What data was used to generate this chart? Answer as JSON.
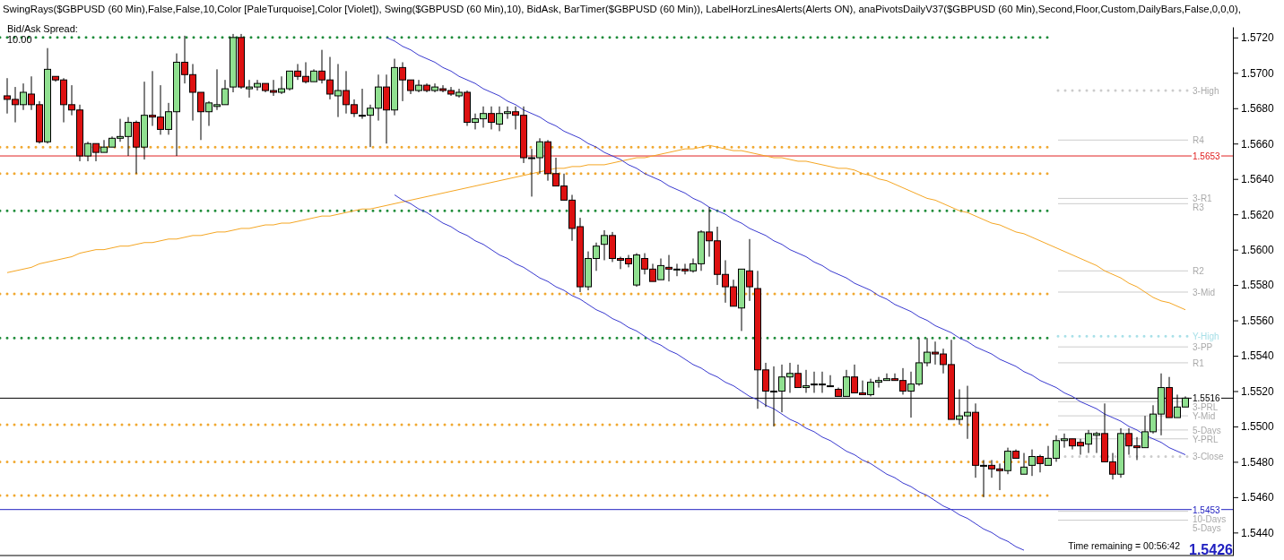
{
  "chart_data": {
    "type": "candlestick",
    "title": "SwingRays($GBPUSD (60 Min),False,False,10,Color [PaleTurquoise],Color [Violet]), Swing($GBPUSD (60 Min),10), BidAsk, BarTimer($GBPUSD (60 Min)), LabelHorzLinesAlerts(Alerts ON), anaPivotsDailyV37($GBPUSD (60 Min),Second,Floor,Custom,DailyBars,False,0,0,0),",
    "categories": [
      null,
      null,
      null,
      null,
      null,
      null,
      null,
      null,
      null,
      null,
      null,
      null,
      null,
      null,
      null,
      null,
      null,
      null,
      null,
      null,
      null,
      null,
      null,
      null,
      null,
      null,
      null,
      null,
      null,
      null,
      null,
      null,
      null,
      null,
      null,
      null,
      null,
      null,
      null,
      null,
      null,
      null,
      null,
      null,
      null,
      null,
      null,
      null,
      null,
      null,
      null,
      null,
      null,
      null,
      null,
      null,
      null,
      null,
      null,
      null,
      null,
      null,
      null,
      null,
      null,
      null,
      null,
      null,
      null,
      null,
      null,
      null,
      null,
      null,
      null,
      null,
      null,
      null,
      null,
      null,
      null,
      null,
      null,
      null,
      null,
      null,
      null,
      null,
      null,
      null,
      null,
      null,
      null,
      null,
      null,
      null,
      null,
      null,
      null,
      null,
      null,
      null,
      null,
      null,
      null,
      null,
      null,
      null,
      null,
      null,
      null,
      null,
      null,
      null,
      null,
      null,
      null,
      null,
      null,
      null,
      null,
      null,
      null,
      null,
      null,
      null,
      null,
      null,
      null,
      null,
      null,
      null,
      null,
      null,
      null,
      null,
      null,
      null,
      null,
      null,
      null,
      null,
      null,
      null,
      null,
      null,
      null
    ],
    "ohlc": [
      [
        1.5687,
        1.5697,
        1.5677,
        1.5685
      ],
      [
        1.5685,
        1.5692,
        1.5672,
        1.5682
      ],
      [
        1.5682,
        1.5694,
        1.5679,
        1.5689
      ],
      [
        1.5688,
        1.5698,
        1.5679,
        1.5682
      ],
      [
        1.5682,
        1.5684,
        1.566,
        1.5661
      ],
      [
        1.5661,
        1.5714,
        1.566,
        1.5702
      ],
      [
        1.5698,
        1.5698,
        1.5695,
        1.5696
      ],
      [
        1.5696,
        1.5697,
        1.5672,
        1.5682
      ],
      [
        1.5682,
        1.5693,
        1.5676,
        1.5679
      ],
      [
        1.5679,
        1.5682,
        1.565,
        1.5653
      ],
      [
        1.5653,
        1.5661,
        1.565,
        1.566
      ],
      [
        1.566,
        1.566,
        1.565,
        1.5655
      ],
      [
        1.5655,
        1.5662,
        1.5655,
        1.5658
      ],
      [
        1.5658,
        1.5664,
        1.5658,
        1.5663
      ],
      [
        1.5663,
        1.5674,
        1.5661,
        1.5664
      ],
      [
        1.5664,
        1.5675,
        1.5653,
        1.5672
      ],
      [
        1.5672,
        1.5673,
        1.5643,
        1.5658
      ],
      [
        1.5658,
        1.5695,
        1.5651,
        1.5676
      ],
      [
        1.5676,
        1.5701,
        1.567,
        1.5675
      ],
      [
        1.5675,
        1.5693,
        1.5665,
        1.5668
      ],
      [
        1.5668,
        1.5683,
        1.5665,
        1.5678
      ],
      [
        1.5678,
        1.5711,
        1.5653,
        1.5706
      ],
      [
        1.5706,
        1.5721,
        1.5694,
        1.5699
      ],
      [
        1.5699,
        1.5705,
        1.5673,
        1.5689
      ],
      [
        1.5689,
        1.5689,
        1.5662,
        1.5678
      ],
      [
        1.5678,
        1.5684,
        1.567,
        1.5683
      ],
      [
        1.5681,
        1.5702,
        1.5679,
        1.5682
      ],
      [
        1.5682,
        1.5696,
        1.5682,
        1.5691
      ],
      [
        1.5692,
        1.5722,
        1.5689,
        1.572
      ],
      [
        1.572,
        1.5722,
        1.5691,
        1.5692
      ],
      [
        1.5691,
        1.5696,
        1.5686,
        1.5692
      ],
      [
        1.5692,
        1.5696,
        1.569,
        1.5694
      ],
      [
        1.5694,
        1.5694,
        1.5689,
        1.569
      ],
      [
        1.569,
        1.5696,
        1.5687,
        1.5689
      ],
      [
        1.5689,
        1.5698,
        1.5688,
        1.5691
      ],
      [
        1.5691,
        1.5701,
        1.569,
        1.5701
      ],
      [
        1.5701,
        1.5705,
        1.5696,
        1.5698
      ],
      [
        1.5698,
        1.5706,
        1.5694,
        1.5695
      ],
      [
        1.5695,
        1.5702,
        1.5695,
        1.5701
      ],
      [
        1.5701,
        1.5713,
        1.5694,
        1.5696
      ],
      [
        1.5696,
        1.5709,
        1.5685,
        1.5688
      ],
      [
        1.5687,
        1.5705,
        1.5675,
        1.569
      ],
      [
        1.569,
        1.5701,
        1.5677,
        1.5682
      ],
      [
        1.5682,
        1.5685,
        1.5675,
        1.5677
      ],
      [
        1.5676,
        1.5691,
        1.5674,
        1.5676
      ],
      [
        1.5676,
        1.5682,
        1.5658,
        1.568
      ],
      [
        1.568,
        1.5699,
        1.5673,
        1.5692
      ],
      [
        1.5692,
        1.5699,
        1.566,
        1.5679
      ],
      [
        1.5679,
        1.5708,
        1.5676,
        1.5703
      ],
      [
        1.5703,
        1.5706,
        1.5684,
        1.5696
      ],
      [
        1.5696,
        1.5696,
        1.5688,
        1.569
      ],
      [
        1.569,
        1.5696,
        1.5689,
        1.5693
      ],
      [
        1.5693,
        1.5694,
        1.5689,
        1.569
      ],
      [
        1.569,
        1.5694,
        1.5689,
        1.5692
      ],
      [
        1.5691,
        1.5693,
        1.5689,
        1.569
      ],
      [
        1.569,
        1.5692,
        1.5687,
        1.5688
      ],
      [
        1.5687,
        1.5691,
        1.5686,
        1.5689
      ],
      [
        1.5689,
        1.569,
        1.567,
        1.5672
      ],
      [
        1.5672,
        1.5677,
        1.5668,
        1.5674
      ],
      [
        1.5674,
        1.5681,
        1.5669,
        1.5677
      ],
      [
        1.5677,
        1.5681,
        1.5668,
        1.5672
      ],
      [
        1.5671,
        1.5681,
        1.5667,
        1.5677
      ],
      [
        1.5677,
        1.5681,
        1.5674,
        1.5678
      ],
      [
        1.5678,
        1.5681,
        1.5668,
        1.5676
      ],
      [
        1.5676,
        1.5681,
        1.5649,
        1.5652
      ],
      [
        1.5652,
        1.5657,
        1.563,
        1.5652
      ],
      [
        1.5652,
        1.5663,
        1.5643,
        1.5661
      ],
      [
        1.5661,
        1.5662,
        1.5639,
        1.5643
      ],
      [
        1.5643,
        1.5652,
        1.5636,
        1.5636
      ],
      [
        1.5636,
        1.5643,
        1.5628,
        1.5628
      ],
      [
        1.5628,
        1.5631,
        1.5605,
        1.5612
      ],
      [
        1.5613,
        1.5618,
        1.5576,
        1.5579
      ],
      [
        1.5579,
        1.5599,
        1.5577,
        1.5595
      ],
      [
        1.5595,
        1.5604,
        1.5588,
        1.5602
      ],
      [
        1.5603,
        1.5611,
        1.5594,
        1.5608
      ],
      [
        1.5608,
        1.561,
        1.5593,
        1.5595
      ],
      [
        1.5595,
        1.5596,
        1.5589,
        1.5594
      ],
      [
        1.5595,
        1.5597,
        1.559,
        1.5592
      ],
      [
        1.558,
        1.5598,
        1.5579,
        1.5597
      ],
      [
        1.5595,
        1.5598,
        1.5586,
        1.5589
      ],
      [
        1.5589,
        1.5592,
        1.5582,
        1.5582
      ],
      [
        1.5583,
        1.5595,
        1.5583,
        1.5591
      ],
      [
        1.559,
        1.5597,
        1.5582,
        1.5589
      ],
      [
        1.5589,
        1.5592,
        1.5585,
        1.5589
      ],
      [
        1.5589,
        1.5592,
        1.5586,
        1.5588
      ],
      [
        1.5588,
        1.5595,
        1.5587,
        1.5592
      ],
      [
        1.5592,
        1.5611,
        1.5588,
        1.561
      ],
      [
        1.561,
        1.5624,
        1.5596,
        1.5605
      ],
      [
        1.5605,
        1.5613,
        1.558,
        1.5586
      ],
      [
        1.5586,
        1.5594,
        1.557,
        1.5579
      ],
      [
        1.5579,
        1.5583,
        1.5568,
        1.5568
      ],
      [
        1.5567,
        1.5589,
        1.5554,
        1.5589
      ],
      [
        1.5588,
        1.5606,
        1.5571,
        1.5579
      ],
      [
        1.5578,
        1.5588,
        1.551,
        1.5532
      ],
      [
        1.5532,
        1.5536,
        1.5511,
        1.552
      ],
      [
        1.552,
        1.5534,
        1.55,
        1.552
      ],
      [
        1.552,
        1.5535,
        1.5508,
        1.5528
      ],
      [
        1.5528,
        1.5536,
        1.5519,
        1.553
      ],
      [
        1.553,
        1.5535,
        1.5522,
        1.5522
      ],
      [
        1.5522,
        1.5532,
        1.5519,
        1.5523
      ],
      [
        1.5524,
        1.5531,
        1.5519,
        1.5524
      ],
      [
        1.5524,
        1.5531,
        1.5519,
        1.5524
      ],
      [
        1.5523,
        1.5529,
        1.5523,
        1.5523
      ],
      [
        1.5521,
        1.5522,
        1.5517,
        1.5517
      ],
      [
        1.5517,
        1.5532,
        1.5517,
        1.5528
      ],
      [
        1.5528,
        1.5535,
        1.5519,
        1.5519
      ],
      [
        1.5519,
        1.5526,
        1.5518,
        1.5518
      ],
      [
        1.5518,
        1.5527,
        1.5517,
        1.5525
      ],
      [
        1.5525,
        1.5528,
        1.5522,
        1.5526
      ],
      [
        1.5526,
        1.553,
        1.5526,
        1.5527
      ],
      [
        1.5527,
        1.553,
        1.5526,
        1.5526
      ],
      [
        1.5526,
        1.5533,
        1.5518,
        1.552
      ],
      [
        1.552,
        1.5531,
        1.5505,
        1.5524
      ],
      [
        1.5524,
        1.555,
        1.5523,
        1.5536
      ],
      [
        1.5536,
        1.555,
        1.5534,
        1.5542
      ],
      [
        1.5542,
        1.5548,
        1.5535,
        1.5541
      ],
      [
        1.5541,
        1.5544,
        1.553,
        1.5535
      ],
      [
        1.5535,
        1.5549,
        1.5504,
        1.5504
      ],
      [
        1.5504,
        1.5521,
        1.5501,
        1.5506
      ],
      [
        1.5506,
        1.5523,
        1.5493,
        1.5508
      ],
      [
        1.5508,
        1.5513,
        1.5471,
        1.5478
      ],
      [
        1.5478,
        1.5481,
        1.546,
        1.5478
      ],
      [
        1.5478,
        1.5481,
        1.5471,
        1.5476
      ],
      [
        1.5476,
        1.5479,
        1.5464,
        1.5475
      ],
      [
        1.5475,
        1.5488,
        1.5473,
        1.5486
      ],
      [
        1.5486,
        1.5487,
        1.5482,
        1.5482
      ],
      [
        1.5473,
        1.5485,
        1.5473,
        1.5477
      ],
      [
        1.5478,
        1.5487,
        1.5472,
        1.5483
      ],
      [
        1.5483,
        1.5484,
        1.5474,
        1.5479
      ],
      [
        1.5478,
        1.5489,
        1.5478,
        1.5482
      ],
      [
        1.5482,
        1.5495,
        1.548,
        1.5492
      ],
      [
        1.5492,
        1.5496,
        1.5488,
        1.5493
      ],
      [
        1.5493,
        1.5493,
        1.5487,
        1.5489
      ],
      [
        1.5491,
        1.5493,
        1.5484,
        1.5489
      ],
      [
        1.549,
        1.5498,
        1.5485,
        1.5496
      ],
      [
        1.5495,
        1.5497,
        1.5485,
        1.5496
      ],
      [
        1.5496,
        1.5513,
        1.548,
        1.548
      ],
      [
        1.548,
        1.5485,
        1.547,
        1.5473
      ],
      [
        1.5473,
        1.5499,
        1.5471,
        1.5496
      ],
      [
        1.5496,
        1.5499,
        1.5484,
        1.5489
      ],
      [
        1.5489,
        1.5494,
        1.5481,
        1.5488
      ],
      [
        1.5488,
        1.5506,
        1.5488,
        1.5497
      ],
      [
        1.5497,
        1.5512,
        1.5496,
        1.5507
      ],
      [
        1.5507,
        1.553,
        1.5495,
        1.5522
      ],
      [
        1.5522,
        1.5528,
        1.5505,
        1.5505
      ],
      [
        1.5505,
        1.5518,
        1.5505,
        1.5511
      ],
      [
        1.5511,
        1.5517,
        1.5511,
        1.5516
      ]
    ],
    "series": [
      {
        "type": "line",
        "color": "#f5a623",
        "values": [
          1.5587,
          1.5588,
          1.5589,
          1.559,
          1.5592,
          1.5593,
          1.5594,
          1.5595,
          1.5596,
          1.5598,
          1.5599,
          1.56,
          1.56,
          1.5601,
          1.5602,
          1.5602,
          1.5603,
          1.5604,
          1.5604,
          1.5605,
          1.5606,
          1.5606,
          1.5607,
          1.5608,
          1.5608,
          1.5609,
          1.561,
          1.561,
          1.5611,
          1.5612,
          1.5612,
          1.5613,
          1.5614,
          1.5614,
          1.5615,
          1.5615,
          1.5616,
          1.5617,
          1.5618,
          1.5619,
          1.5619,
          1.562,
          1.5621,
          1.5622,
          1.5623,
          1.5623,
          1.5624,
          1.5625,
          1.5626,
          1.5627,
          1.5628,
          1.5629,
          1.563,
          1.5631,
          1.5632,
          1.5633,
          1.5634,
          1.5635,
          1.5636,
          1.5637,
          1.5638,
          1.5639,
          1.564,
          1.5641,
          1.5642,
          1.5643,
          1.5644,
          1.5645,
          1.5646,
          1.5646,
          1.5647,
          1.5647,
          1.5648,
          1.5648,
          1.5648,
          1.5649,
          1.565,
          1.5651,
          1.5652,
          1.5652,
          1.5653,
          1.5654,
          1.5655,
          1.5656,
          1.5657,
          1.5657,
          1.5658,
          1.5659,
          1.5658,
          1.5657,
          1.5656,
          1.5656,
          1.5655,
          1.5654,
          1.5653,
          1.5652,
          1.5652,
          1.5651,
          1.565,
          1.565,
          1.5649,
          1.5648,
          1.5647,
          1.5646,
          1.5646,
          1.5645,
          1.5643,
          1.5642,
          1.564,
          1.5639,
          1.5637,
          1.5635,
          1.5633,
          1.5631,
          1.5629,
          1.5628,
          1.5626,
          1.5624,
          1.5622,
          1.5621,
          1.5619,
          1.5617,
          1.5615,
          1.5614,
          1.5612,
          1.561,
          1.5609,
          1.5607,
          1.5605,
          1.5603,
          1.5601,
          1.5599,
          1.5597,
          1.5595,
          1.5593,
          1.5591,
          1.5588,
          1.5586,
          1.5584,
          1.5581,
          1.5579,
          1.5576,
          1.5573,
          1.5571,
          1.557,
          1.5568,
          1.5566
        ]
      },
      {
        "type": "line",
        "color": "#3a3ad0",
        "values": [
          null,
          null,
          null,
          null,
          null,
          null,
          null,
          null,
          null,
          null,
          null,
          null,
          null,
          null,
          null,
          null,
          null,
          null,
          null,
          null,
          null,
          null,
          null,
          null,
          null,
          null,
          null,
          null,
          null,
          null,
          null,
          null,
          null,
          null,
          null,
          null,
          null,
          null,
          null,
          null,
          null,
          null,
          null,
          null,
          null,
          null,
          null,
          1.572,
          1.5718,
          1.5715,
          1.5713,
          1.571,
          1.5708,
          1.5706,
          1.5703,
          1.5701,
          1.5698,
          1.5696,
          1.5694,
          1.5691,
          1.5689,
          1.5687,
          1.5684,
          1.5682,
          1.5679,
          1.5677,
          1.5675,
          1.5672,
          1.567,
          1.5667,
          1.5665,
          1.5663,
          1.566,
          1.5658,
          1.5655,
          1.5653,
          1.5651,
          1.5648,
          1.5646,
          1.5643,
          1.5641,
          1.5639,
          1.5636,
          1.5634,
          1.5632,
          1.5629,
          1.5627,
          1.5624,
          1.5622,
          1.562,
          1.5617,
          1.5615,
          1.5612,
          1.561,
          1.5608,
          1.5605,
          1.5603,
          1.56,
          1.5598,
          1.5596,
          1.5593,
          1.5591,
          1.5588,
          1.5586,
          1.5584,
          1.5581,
          1.5579,
          1.5577,
          1.5574,
          1.5572,
          1.5569,
          1.5567,
          1.5565,
          1.5562,
          1.556,
          1.5557,
          1.5555,
          1.5553,
          1.555,
          1.5548,
          1.5545,
          1.5543,
          1.5541,
          1.5538,
          1.5536,
          1.5534,
          1.5531,
          1.5529,
          1.5526,
          1.5524,
          1.5522,
          1.5519,
          1.5517,
          1.5514,
          1.5512,
          1.551,
          1.5507,
          1.5505,
          1.5503,
          1.55,
          1.5498,
          1.5495,
          1.5493,
          1.5491,
          1.5488,
          1.5486,
          1.5484
        ]
      },
      {
        "type": "line",
        "color": "#3a3ad0",
        "values": [
          null,
          null,
          null,
          null,
          null,
          null,
          null,
          null,
          null,
          null,
          null,
          null,
          null,
          null,
          null,
          null,
          null,
          null,
          null,
          null,
          null,
          null,
          null,
          null,
          null,
          null,
          null,
          null,
          null,
          null,
          null,
          null,
          null,
          null,
          null,
          null,
          null,
          null,
          null,
          null,
          null,
          null,
          null,
          null,
          null,
          null,
          null,
          null,
          1.5631,
          1.5628,
          1.5626,
          1.5623,
          1.5621,
          1.5618,
          1.5615,
          1.5613,
          1.561,
          1.5608,
          1.5605,
          1.5603,
          1.56,
          1.5597,
          1.5595,
          1.5592,
          1.559,
          1.5587,
          1.5584,
          1.5582,
          1.5579,
          1.5577,
          1.5574,
          1.5572,
          1.5569,
          1.5566,
          1.5564,
          1.5561,
          1.5559,
          1.5556,
          1.5554,
          1.5551,
          1.5548,
          1.5546,
          1.5543,
          1.5541,
          1.5538,
          1.5535,
          1.5533,
          1.553,
          1.5528,
          1.5525,
          1.5523,
          1.552,
          1.5517,
          1.5515,
          1.5512,
          1.551,
          1.5507,
          1.5504,
          1.5502,
          1.5499,
          1.5497,
          1.5494,
          1.5492,
          1.5489,
          1.5486,
          1.5484,
          1.5481,
          1.5479,
          1.5476,
          1.5473,
          1.5471,
          1.5468,
          1.5466,
          1.5463,
          1.5461,
          1.5458,
          1.5455,
          1.5453,
          1.545,
          1.5448,
          1.5445,
          1.5442,
          1.544,
          1.5437,
          1.5435,
          1.5432,
          1.543,
          null,
          null,
          null,
          null,
          null,
          null,
          null,
          null,
          null,
          null,
          null,
          null,
          null,
          null,
          null,
          null,
          null,
          null,
          null,
          null
        ]
      }
    ],
    "ref_lines": [
      {
        "axis": "y",
        "value": 1.572,
        "color": "#1e8c3a",
        "line_style": "dotted"
      },
      {
        "axis": "y",
        "value": 1.5622,
        "color": "#1e8c3a",
        "line_style": "dotted"
      },
      {
        "axis": "y",
        "value": 1.555,
        "color": "#1e8c3a",
        "line_style": "dotted"
      },
      {
        "axis": "y",
        "value": 1.5643,
        "color": "#f0a830",
        "line_style": "dotted"
      },
      {
        "axis": "y",
        "value": 1.5658,
        "color": "#f0a830",
        "line_style": "dotted"
      },
      {
        "axis": "y",
        "value": 1.5575,
        "color": "#f0a830",
        "line_style": "dotted"
      },
      {
        "axis": "y",
        "value": 1.5501,
        "color": "#f0a830",
        "line_style": "dotted"
      },
      {
        "axis": "y",
        "value": 1.5461,
        "color": "#f0a830",
        "line_style": "dotted"
      },
      {
        "axis": "y",
        "value": 1.548,
        "color": "#f0a830",
        "line_style": "dotted"
      },
      {
        "axis": "y",
        "value": 1.5653,
        "label": "1.5653",
        "color": "#e02020",
        "line_style": "solid"
      },
      {
        "axis": "y",
        "value": 1.5453,
        "label": "1.5453",
        "color": "#2020c0",
        "line_style": "solid"
      },
      {
        "axis": "y",
        "value": 1.5516,
        "label": "1.5516",
        "color": "#000000",
        "line_style": "solid"
      },
      {
        "axis": "y",
        "value": 1.569,
        "label": "3-High",
        "color": "#cccccc",
        "line_style": "dotted"
      },
      {
        "axis": "y",
        "value": 1.5662,
        "label": "R4",
        "color": "#cccccc",
        "line_style": "solid"
      },
      {
        "axis": "y",
        "value": 1.5629,
        "label": "3-R1",
        "color": "#cccccc",
        "line_style": "solid"
      },
      {
        "axis": "y",
        "value": 1.5626,
        "label": "R3",
        "color": "#cccccc",
        "line_style": "solid"
      },
      {
        "axis": "y",
        "value": 1.5588,
        "label": "R2",
        "color": "#cccccc",
        "line_style": "solid"
      },
      {
        "axis": "y",
        "value": 1.5576,
        "label": "3-Mid",
        "color": "#cccccc",
        "line_style": "solid"
      },
      {
        "axis": "y",
        "value": 1.5551,
        "label": "Y-High",
        "color": "#a8e0e8",
        "line_style": "dotted"
      },
      {
        "axis": "y",
        "value": 1.5545,
        "label": "3-PP",
        "color": "#cccccc",
        "line_style": "solid"
      },
      {
        "axis": "y",
        "value": 1.5536,
        "label": "R1",
        "color": "#cccccc",
        "line_style": "solid"
      },
      {
        "axis": "y",
        "value": 1.5514,
        "label": "3-PRL",
        "color": "#cccccc",
        "line_style": "solid"
      },
      {
        "axis": "y",
        "value": 1.5506,
        "label": "Y-Mid",
        "color": "#cccccc",
        "line_style": "solid"
      },
      {
        "axis": "y",
        "value": 1.5498,
        "label": "5-Days",
        "color": "#cccccc",
        "line_style": "solid"
      },
      {
        "axis": "y",
        "value": 1.5493,
        "label": "Y-PRL",
        "color": "#cccccc",
        "line_style": "solid"
      },
      {
        "axis": "y",
        "value": 1.5483,
        "label": "3-Close",
        "color": "#cccccc",
        "line_style": "dotted"
      },
      {
        "axis": "y",
        "value": 1.5452,
        "label": "10-Days",
        "color": "#cccccc",
        "line_style": "solid"
      },
      {
        "axis": "y",
        "value": 1.5447,
        "label": "5-Days",
        "color": "#cccccc",
        "line_style": "solid"
      }
    ],
    "annotations": [
      "Bid/Ask Spread:",
      "10.00",
      "Time remaining = 00:56:42",
      "1.5426"
    ],
    "ylim": [
      1.5427,
      1.5726
    ],
    "yticks": [
      {
        "value": 1.544,
        "label": "1.5440"
      },
      {
        "value": 1.546,
        "label": "1.5460"
      },
      {
        "value": 1.548,
        "label": "1.5480"
      },
      {
        "value": 1.55,
        "label": "1.5500"
      },
      {
        "value": 1.552,
        "label": "1.5520"
      },
      {
        "value": 1.554,
        "label": "1.5540"
      },
      {
        "value": 1.556,
        "label": "1.5560"
      },
      {
        "value": 1.558,
        "label": "1.5580"
      },
      {
        "value": 1.56,
        "label": "1.5600"
      },
      {
        "value": 1.562,
        "label": "1.5620"
      },
      {
        "value": 1.564,
        "label": "1.5640"
      },
      {
        "value": 1.566,
        "label": "1.5660"
      },
      {
        "value": 1.568,
        "label": "1.5680"
      },
      {
        "value": 1.57,
        "label": "1.5700"
      },
      {
        "value": 1.572,
        "label": "1.5720"
      }
    ],
    "tick_labels": "y"
  }
}
